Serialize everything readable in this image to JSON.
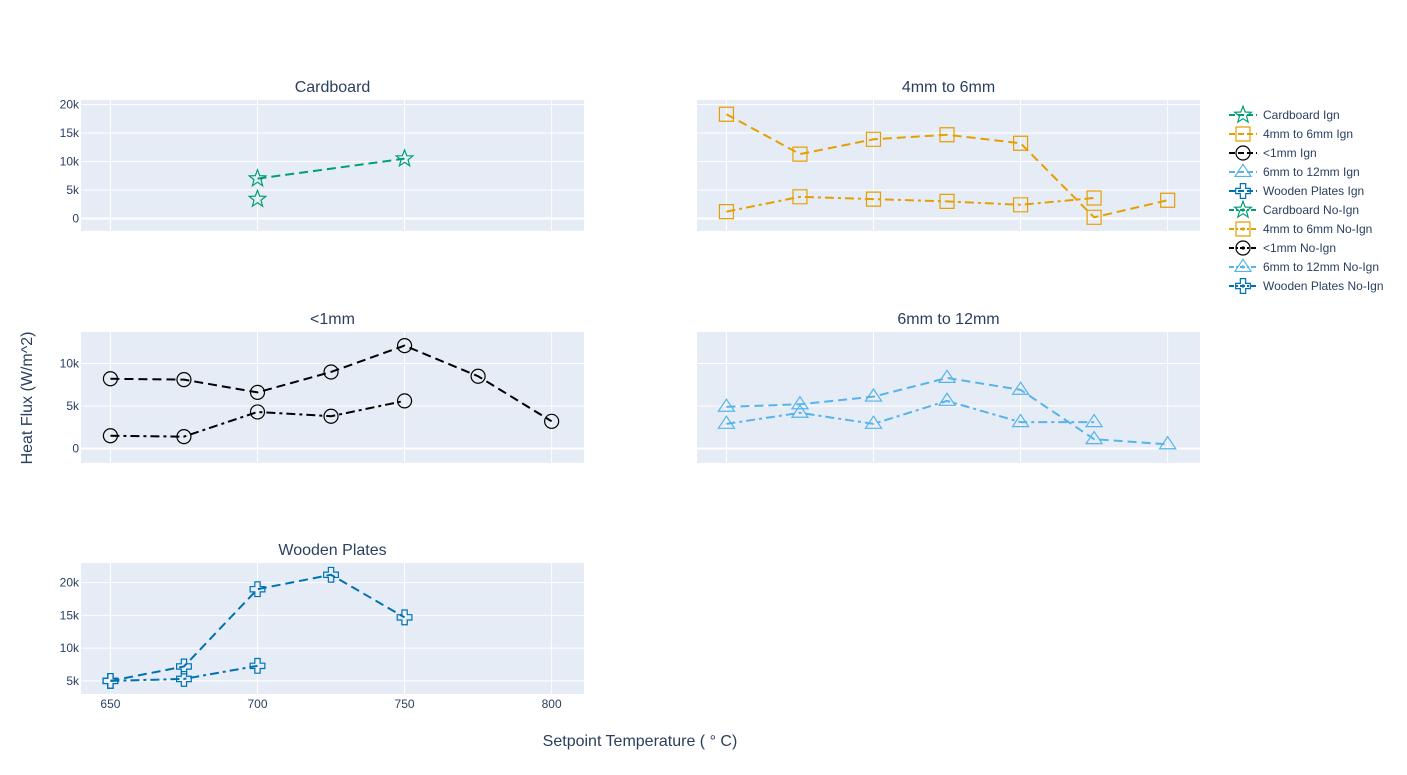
{
  "figure": {
    "xlabel": "Setpoint Temperature ( ° C)",
    "ylabel": "Heat Flux (W/m^2)"
  },
  "colors": {
    "plot_bg": "#e5ecf6",
    "grid": "#ffffff",
    "text": "#2a3f5f",
    "Cardboard": "#009e73",
    "4mm to 6mm": "#e69f00",
    "<1mm": "#000000",
    "6mm to 12mm": "#56b4e9",
    "Wooden Plates": "#0072b2"
  },
  "chart_data": {
    "type": "line",
    "x_axis": {
      "range": [
        640,
        811
      ],
      "ticks": [
        650,
        700,
        750,
        800
      ],
      "tick_labels": [
        "650",
        "700",
        "750",
        "800"
      ]
    },
    "legend_position": "right",
    "grid": true,
    "subplots": [
      {
        "title": "Cardboard",
        "material": "Cardboard",
        "marker": "star",
        "ylim": [
          -2200,
          20800
        ],
        "yticks": [
          0,
          5000,
          10000,
          15000,
          20000
        ],
        "ytick_labels": [
          "0",
          "5k",
          "10k",
          "15k",
          "20k"
        ],
        "series": [
          {
            "name": "Cardboard Ign",
            "dash": "dash",
            "x": [
              700,
              750
            ],
            "y": [
              7000,
              10500
            ]
          },
          {
            "name": "Cardboard No-Ign",
            "dash": "dashdot",
            "x": [
              700
            ],
            "y": [
              3400
            ]
          }
        ]
      },
      {
        "title": "4mm to 6mm",
        "material": "4mm to 6mm",
        "marker": "square",
        "ylim": [
          -2200,
          20800
        ],
        "yticks": [
          0,
          5000,
          10000,
          15000,
          20000
        ],
        "ytick_labels": [
          "",
          "",
          "",
          "",
          ""
        ],
        "series": [
          {
            "name": "4mm to 6mm Ign",
            "dash": "dash",
            "x": [
              650,
              675,
              700,
              725,
              750,
              775,
              800
            ],
            "y": [
              18300,
              11300,
              13900,
              14700,
              13200,
              200,
              3200
            ]
          },
          {
            "name": "4mm to 6mm No-Ign",
            "dash": "dashdot",
            "x": [
              650,
              675,
              700,
              725,
              750,
              775
            ],
            "y": [
              1200,
              3800,
              3400,
              3000,
              2400,
              3600
            ]
          }
        ]
      },
      {
        "title": "<1mm",
        "material": "<1mm",
        "marker": "circle",
        "ylim": [
          -1700,
          13700
        ],
        "yticks": [
          0,
          5000,
          10000
        ],
        "ytick_labels": [
          "0",
          "5k",
          "10k"
        ],
        "series": [
          {
            "name": "<1mm Ign",
            "dash": "dash",
            "x": [
              650,
              675,
              700,
              725,
              750,
              775,
              800
            ],
            "y": [
              8200,
              8100,
              6600,
              9000,
              12100,
              8500,
              3200
            ]
          },
          {
            "name": "<1mm No-Ign",
            "dash": "dashdot",
            "x": [
              650,
              675,
              700,
              725,
              750
            ],
            "y": [
              1500,
              1400,
              4300,
              3800,
              5600
            ]
          }
        ]
      },
      {
        "title": "6mm to 12mm",
        "material": "6mm to 12mm",
        "marker": "triangle",
        "ylim": [
          -1700,
          13700
        ],
        "yticks": [
          0,
          5000,
          10000
        ],
        "ytick_labels": [
          "",
          "",
          ""
        ],
        "series": [
          {
            "name": "6mm to 12mm Ign",
            "dash": "dash",
            "x": [
              650,
              675,
              700,
              725,
              750,
              775,
              800
            ],
            "y": [
              4900,
              5200,
              6100,
              8300,
              6900,
              1100,
              500
            ]
          },
          {
            "name": "6mm to 12mm No-Ign",
            "dash": "dashdot",
            "x": [
              650,
              675,
              700,
              725,
              750,
              775
            ],
            "y": [
              2900,
              4200,
              2900,
              5600,
              3100,
              3100
            ]
          }
        ]
      },
      {
        "title": "Wooden Plates",
        "material": "Wooden Plates",
        "marker": "cross",
        "ylim": [
          3000,
          23000
        ],
        "yticks": [
          5000,
          10000,
          15000,
          20000
        ],
        "ytick_labels": [
          "5k",
          "10k",
          "15k",
          "20k"
        ],
        "series": [
          {
            "name": "Wooden Plates Ign",
            "dash": "dash",
            "x": [
              650,
              675,
              700,
              725,
              750
            ],
            "y": [
              5000,
              7200,
              19000,
              21200,
              14700
            ]
          },
          {
            "name": "Wooden Plates No-Ign",
            "dash": "dashdot",
            "x": [
              650,
              675,
              700
            ],
            "y": [
              5000,
              5300,
              7300
            ]
          }
        ]
      }
    ],
    "legend": [
      {
        "label": "Cardboard Ign",
        "material": "Cardboard",
        "marker": "star",
        "dash": "dash"
      },
      {
        "label": "4mm to 6mm Ign",
        "material": "4mm to 6mm",
        "marker": "square",
        "dash": "dash"
      },
      {
        "label": "<1mm Ign",
        "material": "<1mm",
        "marker": "circle",
        "dash": "dash"
      },
      {
        "label": "6mm to 12mm Ign",
        "material": "6mm to 12mm",
        "marker": "triangle",
        "dash": "dash"
      },
      {
        "label": "Wooden Plates Ign",
        "material": "Wooden Plates",
        "marker": "cross",
        "dash": "dash"
      },
      {
        "label": "Cardboard No-Ign",
        "material": "Cardboard",
        "marker": "star",
        "dash": "dashdot"
      },
      {
        "label": "4mm to 6mm No-Ign",
        "material": "4mm to 6mm",
        "marker": "square",
        "dash": "dashdot"
      },
      {
        "label": "<1mm No-Ign",
        "material": "<1mm",
        "marker": "circle",
        "dash": "dashdot"
      },
      {
        "label": "6mm to 12mm No-Ign",
        "material": "6mm to 12mm",
        "marker": "triangle",
        "dash": "dashdot"
      },
      {
        "label": "Wooden Plates No-Ign",
        "material": "Wooden Plates",
        "marker": "cross",
        "dash": "dashdot"
      }
    ]
  }
}
